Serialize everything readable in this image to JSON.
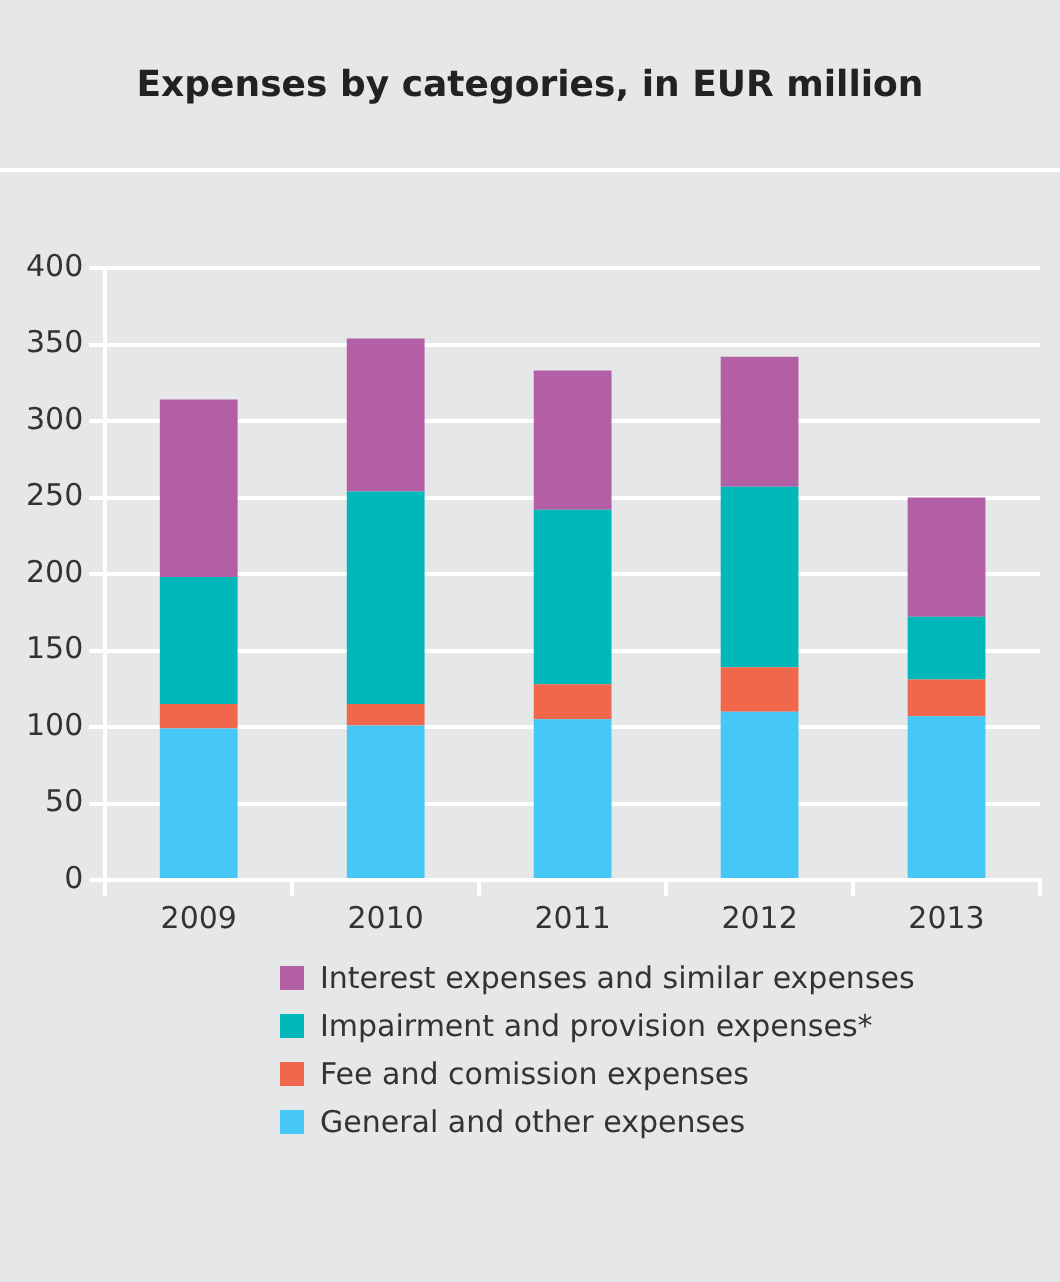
{
  "chart_data": {
    "type": "bar",
    "title": "Expenses by categories, in EUR million",
    "categories": [
      "2009",
      "2010",
      "2011",
      "2012",
      "2013"
    ],
    "stacked": true,
    "series": [
      {
        "name": "General and other expenses",
        "color": "#45c8f5",
        "values": [
          99,
          101,
          105,
          110,
          107
        ]
      },
      {
        "name": "Fee and comission expenses",
        "color": "#f1674b",
        "values": [
          16,
          14,
          23,
          29,
          24
        ]
      },
      {
        "name": "Impairment and provision expenses*",
        "color": "#00b8b9",
        "values": [
          83,
          139,
          114,
          118,
          41
        ]
      },
      {
        "name": "Interest expenses and similar expenses",
        "color": "#b25fa5",
        "values": [
          116,
          100,
          91,
          85,
          78
        ]
      }
    ],
    "ylim": [
      0,
      400
    ],
    "yticks": [
      0,
      50,
      100,
      150,
      200,
      250,
      300,
      350,
      400
    ],
    "grid": "y",
    "legend": "bottom"
  }
}
